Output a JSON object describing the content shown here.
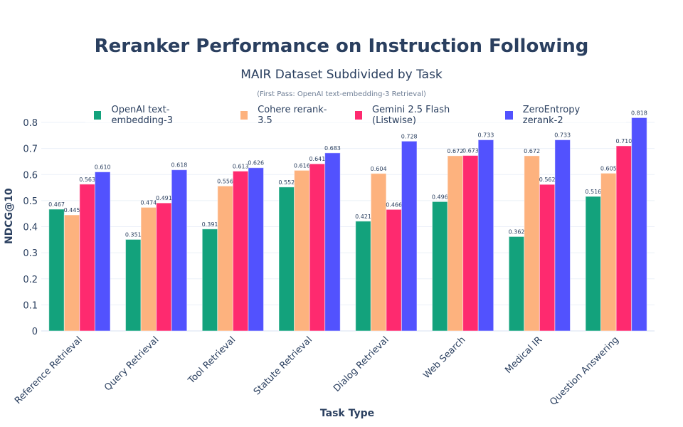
{
  "header": {
    "title": "Reranker Performance on Instruction Following",
    "subtitle": "MAIR Dataset Subdivided by Task",
    "note": "(First Pass: OpenAI text-embedding-3 Retrieval)"
  },
  "legend": [
    {
      "label": "OpenAI text-embedding-3",
      "color": "#13a27c"
    },
    {
      "label": "Cohere rerank-3.5",
      "color": "#fdb27e"
    },
    {
      "label": "Gemini 2.5 Flash (Listwise)",
      "color": "#fe2a6f"
    },
    {
      "label": "ZeroEntropy zerank-2",
      "color": "#5252fe"
    }
  ],
  "axes": {
    "xlabel": "Task Type",
    "ylabel": "NDCG@10"
  },
  "chart_data": {
    "type": "bar",
    "title": "Reranker Performance on Instruction Following",
    "subtitle": "MAIR Dataset Subdivided by Task",
    "annotation": "(First Pass: OpenAI text-embedding-3 Retrieval)",
    "xlabel": "Task Type",
    "ylabel": "NDCG@10",
    "ylim": [
      0,
      0.86
    ],
    "yticks": [
      0,
      0.1,
      0.2,
      0.3,
      0.4,
      0.5,
      0.6,
      0.7,
      0.8
    ],
    "grid": true,
    "legend_position": "top",
    "categories": [
      "Reference Retrieval",
      "Query Retrieval",
      "Tool Retrieval",
      "Statute Retrieval",
      "Dialog Retrieval",
      "Web Search",
      "Medical IR",
      "Question Answering"
    ],
    "series": [
      {
        "name": "OpenAI text-embedding-3",
        "color": "#13a27c",
        "values": [
          0.467,
          0.351,
          0.391,
          0.552,
          0.421,
          0.496,
          0.362,
          0.516
        ]
      },
      {
        "name": "Cohere rerank-3.5",
        "color": "#fdb27e",
        "values": [
          0.445,
          0.474,
          0.556,
          0.616,
          0.604,
          0.672,
          0.672,
          0.605
        ]
      },
      {
        "name": "Gemini 2.5 Flash (Listwise)",
        "color": "#fe2a6f",
        "values": [
          0.563,
          0.491,
          0.613,
          0.641,
          0.466,
          0.673,
          0.562,
          0.71
        ]
      },
      {
        "name": "ZeroEntropy zerank-2",
        "color": "#5252fe",
        "values": [
          0.61,
          0.618,
          0.626,
          0.683,
          0.728,
          0.733,
          0.733,
          0.818
        ]
      }
    ]
  }
}
